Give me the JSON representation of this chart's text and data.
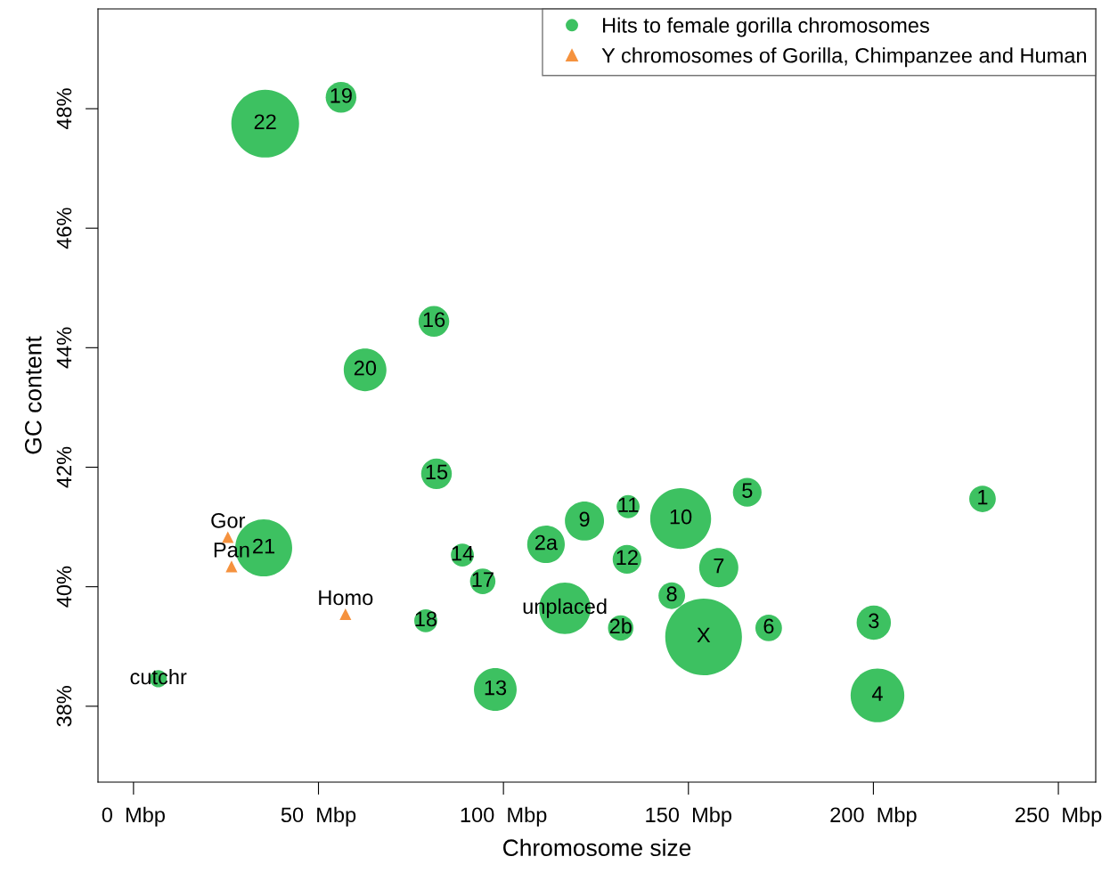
{
  "chart_data": {
    "type": "bubble",
    "xlabel": "Chromosome size",
    "ylabel": "GC content",
    "xlim": [
      -9.6,
      260.1
    ],
    "ylim": [
      36.73,
      49.67
    ],
    "xticks": [
      {
        "value": 0,
        "label": "0  Mbp"
      },
      {
        "value": 50,
        "label": "50  Mbp"
      },
      {
        "value": 100,
        "label": "100  Mbp"
      },
      {
        "value": 150,
        "label": "150  Mbp"
      },
      {
        "value": 200,
        "label": "200  Mbp"
      },
      {
        "value": 250,
        "label": "250  Mbp"
      }
    ],
    "yticks": [
      {
        "value": 38,
        "label": "38%"
      },
      {
        "value": 40,
        "label": "40%"
      },
      {
        "value": 42,
        "label": "42%"
      },
      {
        "value": 44,
        "label": "44%"
      },
      {
        "value": 46,
        "label": "46%"
      },
      {
        "value": 48,
        "label": "48%"
      }
    ],
    "grid": false,
    "legend": "top right",
    "series": [
      {
        "name": "Hits to female gorilla chromosomes",
        "marker": "circle",
        "color": "#3dc161",
        "x": [
          35.6,
          56.1,
          81.2,
          62.6,
          81.9,
          165.9,
          229.5,
          133.7,
          147.9,
          121.9,
          35.2,
          111.5,
          88.9,
          133.4,
          158.2,
          94.4,
          145.5,
          116.6,
          79.0,
          131.7,
          154.1,
          171.7,
          200.1,
          97.8,
          201.1,
          6.7
        ],
        "values": [
          47.75,
          48.19,
          44.44,
          43.63,
          41.89,
          41.58,
          41.47,
          41.34,
          41.14,
          41.1,
          40.65,
          40.71,
          40.53,
          40.46,
          40.32,
          40.09,
          39.85,
          39.64,
          39.43,
          39.31,
          39.16,
          39.31,
          39.4,
          38.28,
          38.18,
          38.46
        ],
        "sizes": [
          0.78,
          0.16,
          0.16,
          0.31,
          0.16,
          0.14,
          0.12,
          0.09,
          0.63,
          0.26,
          0.55,
          0.24,
          0.09,
          0.14,
          0.26,
          0.11,
          0.12,
          0.45,
          0.09,
          0.11,
          1,
          0.12,
          0.2,
          0.31,
          0.49,
          0.05
        ]
      },
      {
        "name": "Y chromosomes of Gorilla, Chimpanzee and Human",
        "type": "scatter",
        "marker": "triangle",
        "color": "#f5923e",
        "x": [
          25.5,
          26.5,
          57.3
        ],
        "values": [
          40.83,
          40.34,
          39.54
        ]
      }
    ],
    "annotations": [
      {
        "text": "22",
        "x": 35.6,
        "y": 47.75
      },
      {
        "text": "19",
        "x": 56.1,
        "y": 48.19
      },
      {
        "text": "16",
        "x": 81.2,
        "y": 44.44
      },
      {
        "text": "20",
        "x": 62.6,
        "y": 43.63
      },
      {
        "text": "15",
        "x": 81.9,
        "y": 41.89
      },
      {
        "text": "5",
        "x": 165.9,
        "y": 41.58
      },
      {
        "text": "1",
        "x": 229.5,
        "y": 41.47
      },
      {
        "text": "11",
        "x": 133.7,
        "y": 41.34
      },
      {
        "text": "10",
        "x": 147.9,
        "y": 41.14
      },
      {
        "text": "9",
        "x": 121.9,
        "y": 41.1
      },
      {
        "text": "21",
        "x": 35.2,
        "y": 40.65
      },
      {
        "text": "2a",
        "x": 111.5,
        "y": 40.71
      },
      {
        "text": "14",
        "x": 88.9,
        "y": 40.53
      },
      {
        "text": "12",
        "x": 133.4,
        "y": 40.46
      },
      {
        "text": "7",
        "x": 158.2,
        "y": 40.32
      },
      {
        "text": "17",
        "x": 94.4,
        "y": 40.09
      },
      {
        "text": "8",
        "x": 145.5,
        "y": 39.85
      },
      {
        "text": "unplaced",
        "x": 116.6,
        "y": 39.64
      },
      {
        "text": "18",
        "x": 79.0,
        "y": 39.43
      },
      {
        "text": "2b",
        "x": 131.7,
        "y": 39.31
      },
      {
        "text": "X",
        "x": 154.1,
        "y": 39.16
      },
      {
        "text": "6",
        "x": 171.7,
        "y": 39.31
      },
      {
        "text": "3",
        "x": 200.1,
        "y": 39.4
      },
      {
        "text": "13",
        "x": 97.8,
        "y": 38.28
      },
      {
        "text": "4",
        "x": 201.1,
        "y": 38.18
      },
      {
        "text": "cutchr",
        "x": 6.7,
        "y": 38.46
      },
      {
        "text": "Gor",
        "x": 25.5,
        "y": 40.83
      },
      {
        "text": "Pan",
        "x": 26.5,
        "y": 40.34
      },
      {
        "text": "Homo",
        "x": 57.3,
        "y": 39.54
      }
    ]
  }
}
